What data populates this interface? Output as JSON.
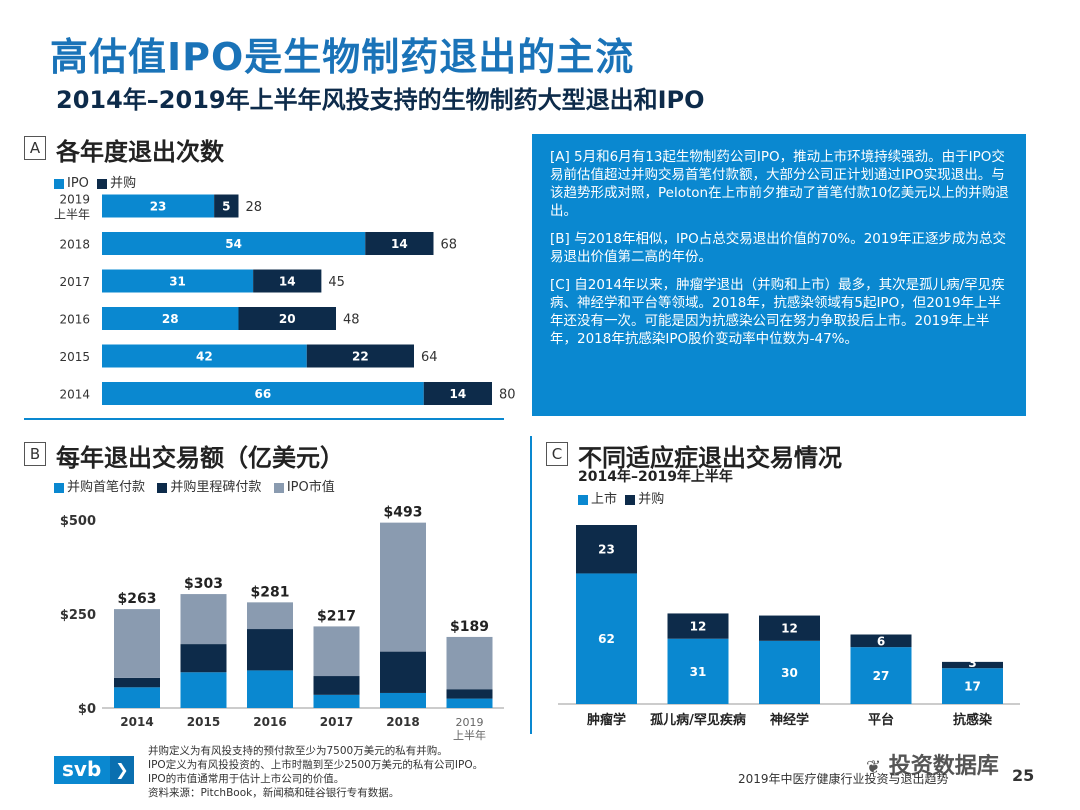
{
  "header": {
    "title": "高估值IPO是生物制药退出的主流",
    "subtitle": "2014年–2019年上半年风投支持的生物制药大型退出和IPO"
  },
  "panels": {
    "a": {
      "letter": "A",
      "title": "各年度退出次数"
    },
    "b": {
      "letter": "B",
      "title": "每年退出交易额（亿美元）"
    },
    "c": {
      "letter": "C",
      "title": "不同适应症退出交易情况",
      "subtitle": "2014年–2019年上半年"
    }
  },
  "colors": {
    "ipo": "#0a88d0",
    "ma": "#0d2b4a",
    "ipo_value": "#8a9bb0",
    "accent": "#0a88d0"
  },
  "info_box": {
    "paragraphs": [
      "[A] 5月和6月有13起生物制药公司IPO，推动上市环境持续强劲。由于IPO交易前估值超过并购交易首笔付款额，大部分公司正计划通过IPO实现退出。与该趋势形成对照，Peloton在上市前夕推动了首笔付款10亿美元以上的并购退出。",
      "[B] 与2018年相似，IPO占总交易退出价值的70%。2019年正逐步成为总交易退出价值第二高的年份。",
      "[C] 自2014年以来，肿瘤学退出（并购和上市）最多，其次是孤儿病/罕见疾病、神经学和平台等领域。2018年，抗感染领域有5起IPO，但2019年上半年还没有一次。可能是因为抗感染公司在努力争取投后上市。2019年上半年，2018年抗感染IPO股价变动率中位数为-47%。"
    ]
  },
  "chart_data": [
    {
      "id": "A",
      "type": "bar",
      "orientation": "horizontal",
      "stacked": true,
      "title": "各年度退出次数",
      "legend": [
        "IPO",
        "并购"
      ],
      "legend_position": "top-left",
      "categories": [
        "2019 上半年",
        "2018",
        "2017",
        "2016",
        "2015",
        "2014"
      ],
      "category_lines": [
        [
          "2019",
          "上半年"
        ],
        [
          "2018"
        ],
        [
          "2017"
        ],
        [
          "2016"
        ],
        [
          "2015"
        ],
        [
          "2014"
        ]
      ],
      "series": [
        {
          "name": "IPO",
          "values": [
            23,
            54,
            31,
            28,
            42,
            66
          ]
        },
        {
          "name": "并购",
          "values": [
            5,
            14,
            14,
            20,
            22,
            14
          ]
        }
      ],
      "totals": [
        28,
        68,
        45,
        48,
        64,
        80
      ],
      "xlim": [
        0,
        80
      ]
    },
    {
      "id": "B",
      "type": "bar",
      "stacked": true,
      "title": "每年退出交易额（亿美元）",
      "legend": [
        "并购首笔付款",
        "并购里程碑付款",
        "IPO市值"
      ],
      "legend_position": "top-left",
      "categories": [
        "2014",
        "2015",
        "2016",
        "2017",
        "2018",
        "2019 上半年"
      ],
      "category_lines": [
        [
          "2014"
        ],
        [
          "2015"
        ],
        [
          "2016"
        ],
        [
          "2017"
        ],
        [
          "2018"
        ],
        [
          "2019",
          "上半年"
        ]
      ],
      "series": [
        {
          "name": "并购首笔付款",
          "values": [
            55,
            95,
            100,
            35,
            40,
            25
          ]
        },
        {
          "name": "并购里程碑付款",
          "values": [
            25,
            75,
            110,
            50,
            110,
            25
          ]
        },
        {
          "name": "IPO市值",
          "values": [
            183,
            133,
            71,
            132,
            343,
            139
          ]
        }
      ],
      "totals": [
        "$263",
        "$303",
        "$281",
        "$217",
        "$493",
        "$189"
      ],
      "y_ticks": [
        "$0",
        "$250",
        "$500"
      ],
      "ylim": [
        0,
        500
      ]
    },
    {
      "id": "C",
      "type": "bar",
      "stacked": true,
      "title": "不同适应症退出交易情况",
      "subtitle": "2014年–2019年上半年",
      "legend": [
        "上市",
        "并购"
      ],
      "legend_position": "top-left",
      "categories": [
        "肿瘤学",
        "孤儿病/罕见疾病",
        "神经学",
        "平台",
        "抗感染"
      ],
      "series": [
        {
          "name": "上市",
          "values": [
            62,
            31,
            30,
            27,
            17
          ]
        },
        {
          "name": "并购",
          "values": [
            23,
            12,
            12,
            6,
            3
          ]
        }
      ],
      "ylim": [
        0,
        85
      ]
    }
  ],
  "footnotes": [
    "并购定义为有风投支持的预付款至少为7500万美元的私有并购。",
    "IPO定义为有风投投资的、上市时融到至少2500万美元的私有公司IPO。",
    "IPO的市值通常用于估计上市公司的价值。",
    "资料来源：PitchBook，新闻稿和硅谷银行专有数据。"
  ],
  "footer": {
    "logo_text": "svb",
    "logo_arrow": "❯",
    "doc_title": "2019年中医疗健康行业投资与退出趋势",
    "page_number": "25",
    "watermark": "投资数据库"
  }
}
